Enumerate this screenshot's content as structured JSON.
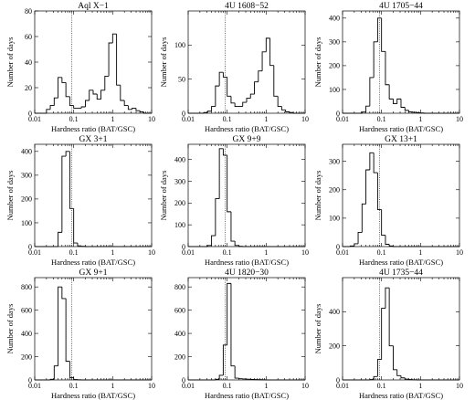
{
  "chart_data": [
    {
      "type": "histogram",
      "title": "Aql X−1",
      "xlabel": "Hardness ratio (BAT/GSC)",
      "ylabel": "Number of days",
      "xscale": "log",
      "xlim": [
        0.01,
        10
      ],
      "ylim": [
        0,
        80
      ],
      "yticks": [
        0,
        20,
        40,
        60,
        80
      ],
      "xticks": [
        0.01,
        0.1,
        1,
        10
      ],
      "xtick_labels": [
        "0.01",
        "0.1",
        "1",
        "10"
      ],
      "threshold_line": 0.09,
      "bin_edges": [
        0.01,
        0.0126,
        0.0158,
        0.02,
        0.0251,
        0.0316,
        0.0398,
        0.0501,
        0.0631,
        0.0794,
        0.1,
        0.126,
        0.158,
        0.2,
        0.251,
        0.316,
        0.398,
        0.501,
        0.631,
        0.794,
        1.0,
        1.26,
        1.58,
        2.0,
        2.51,
        3.16,
        3.98,
        5.01,
        6.31,
        7.94,
        10.0
      ],
      "counts": [
        0,
        0,
        0,
        3,
        6,
        12,
        28,
        24,
        13,
        6,
        4,
        4,
        5,
        10,
        18,
        15,
        11,
        18,
        29,
        55,
        62,
        22,
        10,
        6,
        3,
        4,
        2,
        1,
        0,
        0
      ]
    },
    {
      "type": "histogram",
      "title": "4U 1608−52",
      "xlabel": "Hardness ratio (BAT/GSC)",
      "ylabel": "Number of days",
      "xscale": "log",
      "xlim": [
        0.01,
        10
      ],
      "ylim": [
        0,
        150
      ],
      "yticks": [
        0,
        50,
        100
      ],
      "xticks": [
        0.01,
        0.1,
        1,
        10
      ],
      "xtick_labels": [
        "0.01",
        "0.1",
        "1",
        "10"
      ],
      "threshold_line": 0.09,
      "bin_edges": [
        0.01,
        0.0126,
        0.0158,
        0.02,
        0.0251,
        0.0316,
        0.0398,
        0.0501,
        0.0631,
        0.0794,
        0.1,
        0.126,
        0.158,
        0.2,
        0.251,
        0.316,
        0.398,
        0.501,
        0.631,
        0.794,
        1.0,
        1.26,
        1.58,
        2.0,
        2.51,
        3.16,
        3.98,
        5.01,
        6.31,
        7.94,
        10.0
      ],
      "counts": [
        0,
        0,
        0,
        0,
        1,
        3,
        10,
        40,
        60,
        53,
        25,
        15,
        10,
        10,
        16,
        22,
        28,
        46,
        62,
        90,
        110,
        70,
        25,
        10,
        5,
        2,
        1,
        0,
        0,
        0
      ]
    },
    {
      "type": "histogram",
      "title": "4U 1705−44",
      "xlabel": "Hardness ratio (BAT/GSC)",
      "ylabel": "Number of days",
      "xscale": "log",
      "xlim": [
        0.01,
        10
      ],
      "ylim": [
        0,
        430
      ],
      "yticks": [
        0,
        100,
        200,
        300,
        400
      ],
      "xticks": [
        0.01,
        0.1,
        1,
        10
      ],
      "xtick_labels": [
        "0.01",
        "0.1",
        "1",
        "10"
      ],
      "threshold_line": 0.09,
      "bin_edges": [
        0.01,
        0.0126,
        0.0158,
        0.02,
        0.0251,
        0.0316,
        0.0398,
        0.0501,
        0.0631,
        0.0794,
        0.1,
        0.126,
        0.158,
        0.2,
        0.251,
        0.316,
        0.398,
        0.501,
        0.631,
        0.794,
        1.0,
        1.26,
        1.58,
        2.0,
        2.51,
        3.16,
        3.98,
        5.01,
        6.31,
        7.94,
        10.0
      ],
      "counts": [
        0,
        0,
        0,
        0,
        0,
        5,
        30,
        150,
        300,
        400,
        260,
        120,
        60,
        40,
        60,
        25,
        12,
        6,
        4,
        2,
        1,
        0,
        0,
        0,
        0,
        0,
        0,
        0,
        0,
        0
      ]
    },
    {
      "type": "histogram",
      "title": "GX 3+1",
      "xlabel": "Hardness ratio (BAT/GSC)",
      "ylabel": "Number of days",
      "xscale": "log",
      "xlim": [
        0.01,
        10
      ],
      "ylim": [
        0,
        430
      ],
      "yticks": [
        0,
        100,
        200,
        300,
        400
      ],
      "xticks": [
        0.01,
        0.1,
        1,
        10
      ],
      "xtick_labels": [
        "0.01",
        "0.1",
        "1",
        "10"
      ],
      "threshold_line": 0.09,
      "bin_edges": [
        0.01,
        0.0126,
        0.0158,
        0.02,
        0.0251,
        0.0316,
        0.0398,
        0.0501,
        0.0631,
        0.0794,
        0.1,
        0.126,
        0.158,
        0.2,
        0.251,
        0.316,
        0.398,
        0.501,
        0.631,
        0.794,
        1.0,
        1.26,
        1.58,
        2.0,
        2.51,
        3.16,
        3.98,
        5.01,
        6.31,
        7.94,
        10.0
      ],
      "counts": [
        0,
        0,
        0,
        0,
        0,
        0,
        60,
        380,
        400,
        160,
        15,
        3,
        1,
        0,
        0,
        0,
        0,
        0,
        0,
        0,
        0,
        0,
        0,
        0,
        0,
        0,
        0,
        0,
        0,
        0
      ]
    },
    {
      "type": "histogram",
      "title": "GX 9+9",
      "xlabel": "Hardness ratio (BAT/GSC)",
      "ylabel": "Number of days",
      "xscale": "log",
      "xlim": [
        0.01,
        10
      ],
      "ylim": [
        0,
        470
      ],
      "yticks": [
        0,
        100,
        200,
        300,
        400
      ],
      "xticks": [
        0.01,
        0.1,
        1,
        10
      ],
      "xtick_labels": [
        "0.01",
        "0.1",
        "1",
        "10"
      ],
      "threshold_line": 0.09,
      "bin_edges": [
        0.01,
        0.0126,
        0.0158,
        0.02,
        0.0251,
        0.0316,
        0.0398,
        0.0501,
        0.0631,
        0.0794,
        0.1,
        0.126,
        0.158,
        0.2,
        0.251,
        0.316,
        0.398,
        0.501,
        0.631,
        0.794,
        1.0,
        1.26,
        1.58,
        2.0,
        2.51,
        3.16,
        3.98,
        5.01,
        6.31,
        7.94,
        10.0
      ],
      "counts": [
        0,
        0,
        0,
        0,
        0,
        5,
        50,
        220,
        450,
        420,
        160,
        25,
        5,
        1,
        0,
        0,
        0,
        0,
        0,
        0,
        0,
        0,
        0,
        0,
        0,
        0,
        0,
        0,
        0,
        0
      ]
    },
    {
      "type": "histogram",
      "title": "GX 13+1",
      "xlabel": "Hardness ratio (BAT/GSC)",
      "ylabel": "Number of days",
      "xscale": "log",
      "xlim": [
        0.01,
        10
      ],
      "ylim": [
        0,
        360
      ],
      "yticks": [
        0,
        100,
        200,
        300
      ],
      "xticks": [
        0.01,
        0.1,
        1,
        10
      ],
      "xtick_labels": [
        "0.01",
        "0.1",
        "1",
        "10"
      ],
      "threshold_line": 0.09,
      "bin_edges": [
        0.01,
        0.0126,
        0.0158,
        0.02,
        0.0251,
        0.0316,
        0.0398,
        0.0501,
        0.0631,
        0.0794,
        0.1,
        0.126,
        0.158,
        0.2,
        0.251,
        0.316,
        0.398,
        0.501,
        0.631,
        0.794,
        1.0,
        1.26,
        1.58,
        2.0,
        2.51,
        3.16,
        3.98,
        5.01,
        6.31,
        7.94,
        10.0
      ],
      "counts": [
        0,
        0,
        2,
        10,
        50,
        150,
        270,
        330,
        260,
        130,
        40,
        8,
        2,
        0,
        0,
        0,
        0,
        0,
        0,
        0,
        0,
        0,
        0,
        0,
        0,
        0,
        0,
        0,
        0,
        0
      ]
    },
    {
      "type": "histogram",
      "title": "GX 9+1",
      "xlabel": "Hardness ratio (BAT/GSC)",
      "ylabel": "Number of days",
      "xscale": "log",
      "xlim": [
        0.01,
        10
      ],
      "ylim": [
        0,
        880
      ],
      "yticks": [
        0,
        200,
        400,
        600,
        800
      ],
      "xticks": [
        0.01,
        0.1,
        1,
        10
      ],
      "xtick_labels": [
        "0.01",
        "0.1",
        "1",
        "10"
      ],
      "threshold_line": 0.09,
      "bin_edges": [
        0.01,
        0.0126,
        0.0158,
        0.02,
        0.0251,
        0.0316,
        0.0398,
        0.0501,
        0.0631,
        0.0794,
        0.1,
        0.126,
        0.158,
        0.2,
        0.251,
        0.316,
        0.398,
        0.501,
        0.631,
        0.794,
        1.0,
        1.26,
        1.58,
        2.0,
        2.51,
        3.16,
        3.98,
        5.01,
        6.31,
        7.94,
        10.0
      ],
      "counts": [
        0,
        0,
        0,
        0,
        5,
        120,
        800,
        700,
        160,
        20,
        3,
        1,
        0,
        0,
        0,
        0,
        0,
        0,
        0,
        0,
        0,
        0,
        0,
        0,
        0,
        0,
        0,
        0,
        0,
        0
      ]
    },
    {
      "type": "histogram",
      "title": "4U 1820−30",
      "xlabel": "Hardness ratio (BAT/GSC)",
      "ylabel": "",
      "xscale": "log",
      "xlim": [
        0.01,
        10
      ],
      "ylim": [
        0,
        880
      ],
      "yticks": [
        0,
        200,
        400,
        600,
        800
      ],
      "xticks": [
        0.01,
        0.1,
        1,
        10
      ],
      "xtick_labels": [
        "0.01",
        "0.1",
        "1",
        "10"
      ],
      "threshold_line": 0.09,
      "bin_edges": [
        0.01,
        0.0126,
        0.0158,
        0.02,
        0.0251,
        0.0316,
        0.0398,
        0.0501,
        0.0631,
        0.0794,
        0.1,
        0.126,
        0.158,
        0.2,
        0.251,
        0.316,
        0.398,
        0.501,
        0.631,
        0.794,
        1.0,
        1.26,
        1.58,
        2.0,
        2.51,
        3.16,
        3.98,
        5.01,
        6.31,
        7.94,
        10.0
      ],
      "counts": [
        0,
        0,
        0,
        0,
        0,
        0,
        0,
        5,
        40,
        300,
        830,
        120,
        15,
        10,
        8,
        6,
        4,
        3,
        2,
        1,
        0,
        0,
        0,
        0,
        0,
        0,
        0,
        0,
        0,
        0
      ]
    },
    {
      "type": "histogram",
      "title": "4U 1735−44",
      "xlabel": "Hardness ratio (BAT/GSC)",
      "ylabel": "Number of days",
      "xscale": "log",
      "xlim": [
        0.01,
        10
      ],
      "ylim": [
        0,
        600
      ],
      "yticks": [
        0,
        200,
        400
      ],
      "xticks": [
        0.01,
        0.1,
        1,
        10
      ],
      "xtick_labels": [
        "0.01",
        "0.1",
        "1",
        "10"
      ],
      "threshold_line": 0.09,
      "bin_edges": [
        0.01,
        0.0126,
        0.0158,
        0.02,
        0.0251,
        0.0316,
        0.0398,
        0.0501,
        0.0631,
        0.0794,
        0.1,
        0.126,
        0.158,
        0.2,
        0.251,
        0.316,
        0.398,
        0.501,
        0.631,
        0.794,
        1.0,
        1.26,
        1.58,
        2.0,
        2.51,
        3.16,
        3.98,
        5.01,
        6.31,
        7.94,
        10.0
      ],
      "counts": [
        0,
        0,
        0,
        0,
        0,
        0,
        0,
        2,
        20,
        120,
        420,
        540,
        200,
        60,
        25,
        12,
        5,
        2,
        1,
        0,
        0,
        0,
        0,
        0,
        0,
        0,
        0,
        0,
        0,
        0
      ]
    }
  ]
}
